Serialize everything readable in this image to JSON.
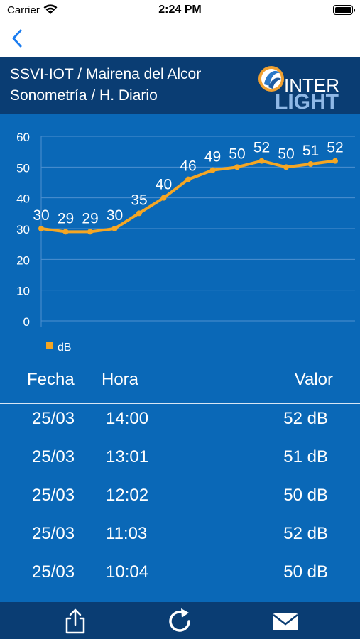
{
  "status": {
    "carrier": "Carrier",
    "time": "2:24 PM",
    "icons": [
      "wifi-icon",
      "battery-icon"
    ]
  },
  "nav": {
    "back_icon": "chevron-left-icon"
  },
  "header": {
    "line1": "SSVI-IOT / Mairena del Alcor",
    "line2": "Sonometría / H. Diario",
    "logo_text_top": "INTER",
    "logo_text_bottom": "LIGHT"
  },
  "chart_data": {
    "type": "line",
    "x": [
      "1",
      "2",
      "3",
      "4",
      "5",
      "6",
      "7",
      "8",
      "9",
      "10",
      "11",
      "12",
      "13"
    ],
    "series": [
      {
        "name": "dB",
        "values": [
          30,
          29,
          29,
          30,
          35,
          40,
          46,
          49,
          50,
          52,
          50,
          51,
          52
        ]
      }
    ],
    "ylim": [
      0,
      60
    ],
    "yticks": [
      0,
      10,
      20,
      30,
      40,
      50,
      60
    ],
    "grid": true,
    "legend_position": "bottom-left",
    "data_labels": true,
    "colors": {
      "line": "#f5a623",
      "grid": "#4d8fcf",
      "text": "#ffffff"
    }
  },
  "table": {
    "headers": {
      "fecha": "Fecha",
      "hora": "Hora",
      "valor": "Valor"
    },
    "rows": [
      {
        "fecha": "25/03",
        "hora": "14:00",
        "valor": "52 dB"
      },
      {
        "fecha": "25/03",
        "hora": "13:01",
        "valor": "51 dB"
      },
      {
        "fecha": "25/03",
        "hora": "12:02",
        "valor": "50 dB"
      },
      {
        "fecha": "25/03",
        "hora": "11:03",
        "valor": "52 dB"
      },
      {
        "fecha": "25/03",
        "hora": "10:04",
        "valor": "50 dB"
      }
    ]
  },
  "toolbar": {
    "icons": [
      "share-icon",
      "refresh-icon",
      "mail-icon"
    ]
  },
  "colors": {
    "background": "#0a68b7",
    "header": "#0a3d73",
    "accent": "#f5a623",
    "nav_tint": "#1a7cf0"
  }
}
